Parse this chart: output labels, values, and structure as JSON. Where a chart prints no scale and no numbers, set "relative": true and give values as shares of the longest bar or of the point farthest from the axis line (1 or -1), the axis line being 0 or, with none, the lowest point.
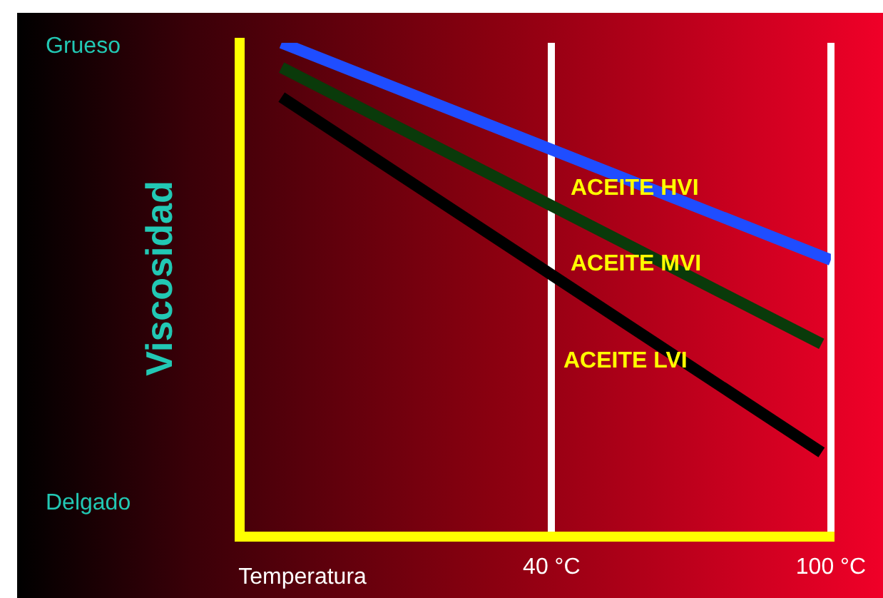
{
  "chart_data": {
    "type": "line",
    "xlabel": "Temperatura",
    "ylabel": "Viscosidad",
    "relative": true,
    "xlim": [
      -27,
      100
    ],
    "xticks": [
      {
        "value": 40,
        "label": "40 °C"
      },
      {
        "value": 100,
        "label": "100 °C"
      }
    ],
    "grid": "x",
    "legend": false,
    "marker": "none",
    "line_style": "solid",
    "annotations": [
      "Grueso",
      "Delgado"
    ],
    "series": [
      {
        "name": "ACEITE HVI",
        "color": "#1f4dff",
        "x": [
          -18,
          100
        ],
        "values": [
          1,
          0.56
        ]
      },
      {
        "name": "ACEITE MVI",
        "color": "#0a3a0a",
        "x": [
          -18,
          98
        ],
        "values": [
          0.95,
          0.39
        ]
      },
      {
        "name": "ACEITE LVI",
        "color": "#000000",
        "x": [
          -18,
          98
        ],
        "values": [
          0.89,
          0.17
        ]
      }
    ]
  }
}
